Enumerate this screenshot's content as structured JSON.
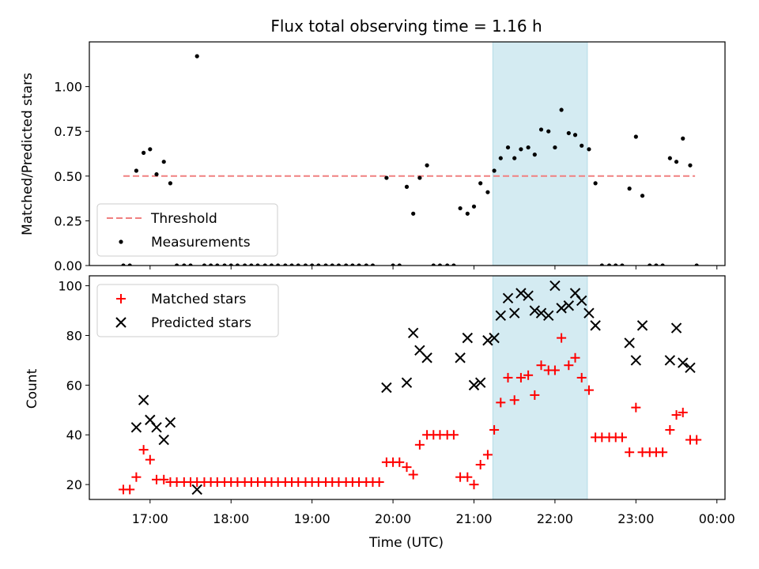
{
  "chart_data": [
    {
      "type": "scatter",
      "title": "Flux total observing time = 1.16 h",
      "ylabel": "Matched/Predicted stars",
      "xlabel": "",
      "xlim": [
        16.25,
        24.1
      ],
      "ylim": [
        0,
        1.25
      ],
      "yticks": [
        0.0,
        0.25,
        0.5,
        0.75,
        1.0
      ],
      "ytick_labels": [
        "0.00",
        "0.25",
        "0.50",
        "0.75",
        "1.00"
      ],
      "shaded_span": [
        21.233,
        22.4
      ],
      "shaded_color": "#d4ebf2",
      "legend_position": "lower-left",
      "threshold": {
        "name": "Threshold",
        "color": "#f08080",
        "x": [
          16.67,
          23.73
        ],
        "y": 0.5
      },
      "measurements": {
        "name": "Measurements",
        "color": "#000000",
        "points": [
          [
            16.67,
            0
          ],
          [
            16.75,
            0
          ],
          [
            16.83,
            0.53
          ],
          [
            16.92,
            0.63
          ],
          [
            17.0,
            0.65
          ],
          [
            17.08,
            0.51
          ],
          [
            17.17,
            0.58
          ],
          [
            17.25,
            0.46
          ],
          [
            17.33,
            0
          ],
          [
            17.42,
            0
          ],
          [
            17.5,
            0
          ],
          [
            17.58,
            1.17
          ],
          [
            17.67,
            0
          ],
          [
            17.75,
            0
          ],
          [
            17.83,
            0
          ],
          [
            17.92,
            0
          ],
          [
            18.0,
            0
          ],
          [
            18.08,
            0
          ],
          [
            18.17,
            0
          ],
          [
            18.25,
            0
          ],
          [
            18.33,
            0
          ],
          [
            18.42,
            0
          ],
          [
            18.5,
            0
          ],
          [
            18.58,
            0
          ],
          [
            18.67,
            0
          ],
          [
            18.75,
            0
          ],
          [
            18.83,
            0
          ],
          [
            18.92,
            0
          ],
          [
            19.0,
            0
          ],
          [
            19.08,
            0
          ],
          [
            19.17,
            0
          ],
          [
            19.25,
            0
          ],
          [
            19.33,
            0
          ],
          [
            19.42,
            0
          ],
          [
            19.5,
            0
          ],
          [
            19.58,
            0
          ],
          [
            19.67,
            0
          ],
          [
            19.75,
            0
          ],
          [
            19.92,
            0.49
          ],
          [
            20.0,
            0
          ],
          [
            20.08,
            0
          ],
          [
            20.17,
            0.44
          ],
          [
            20.25,
            0.29
          ],
          [
            20.33,
            0.49
          ],
          [
            20.42,
            0.56
          ],
          [
            20.5,
            0
          ],
          [
            20.58,
            0
          ],
          [
            20.67,
            0
          ],
          [
            20.75,
            0
          ],
          [
            20.83,
            0.32
          ],
          [
            20.92,
            0.29
          ],
          [
            21.0,
            0.33
          ],
          [
            21.08,
            0.46
          ],
          [
            21.17,
            0.41
          ],
          [
            21.25,
            0.53
          ],
          [
            21.33,
            0.6
          ],
          [
            21.42,
            0.66
          ],
          [
            21.5,
            0.6
          ],
          [
            21.58,
            0.65
          ],
          [
            21.67,
            0.66
          ],
          [
            21.75,
            0.62
          ],
          [
            21.83,
            0.76
          ],
          [
            21.92,
            0.75
          ],
          [
            22.0,
            0.66
          ],
          [
            22.08,
            0.87
          ],
          [
            22.17,
            0.74
          ],
          [
            22.25,
            0.73
          ],
          [
            22.33,
            0.67
          ],
          [
            22.42,
            0.65
          ],
          [
            22.5,
            0.46
          ],
          [
            22.58,
            0
          ],
          [
            22.67,
            0
          ],
          [
            22.75,
            0
          ],
          [
            22.83,
            0
          ],
          [
            22.92,
            0.43
          ],
          [
            23.0,
            0.72
          ],
          [
            23.08,
            0.39
          ],
          [
            23.17,
            0
          ],
          [
            23.25,
            0
          ],
          [
            23.33,
            0
          ],
          [
            23.42,
            0.6
          ],
          [
            23.5,
            0.58
          ],
          [
            23.58,
            0.71
          ],
          [
            23.67,
            0.56
          ],
          [
            23.75,
            0
          ]
        ]
      }
    },
    {
      "type": "scatter",
      "title": "",
      "ylabel": "Count",
      "xlabel": "Time (UTC)",
      "xlim": [
        16.25,
        24.1
      ],
      "ylim": [
        14,
        104
      ],
      "yticks": [
        20,
        40,
        60,
        80,
        100
      ],
      "xticks": [
        17,
        18,
        19,
        20,
        21,
        22,
        23,
        24
      ],
      "xtick_labels": [
        "17:00",
        "18:00",
        "19:00",
        "20:00",
        "21:00",
        "22:00",
        "23:00",
        "00:00"
      ],
      "shaded_span": [
        21.233,
        22.4
      ],
      "shaded_color": "#d4ebf2",
      "legend_position": "upper-left",
      "series": [
        {
          "name": "Matched stars",
          "marker": "plus",
          "color": "#ff0000",
          "points": [
            [
              16.67,
              18
            ],
            [
              16.75,
              18
            ],
            [
              16.83,
              23
            ],
            [
              16.92,
              34
            ],
            [
              17.0,
              30
            ],
            [
              17.08,
              22
            ],
            [
              17.17,
              22
            ],
            [
              17.25,
              21
            ],
            [
              17.33,
              21
            ],
            [
              17.42,
              21
            ],
            [
              17.5,
              21
            ],
            [
              17.58,
              21
            ],
            [
              17.67,
              21
            ],
            [
              17.75,
              21
            ],
            [
              17.83,
              21
            ],
            [
              17.92,
              21
            ],
            [
              18.0,
              21
            ],
            [
              18.08,
              21
            ],
            [
              18.17,
              21
            ],
            [
              18.25,
              21
            ],
            [
              18.33,
              21
            ],
            [
              18.42,
              21
            ],
            [
              18.5,
              21
            ],
            [
              18.58,
              21
            ],
            [
              18.67,
              21
            ],
            [
              18.75,
              21
            ],
            [
              18.83,
              21
            ],
            [
              18.92,
              21
            ],
            [
              19.0,
              21
            ],
            [
              19.08,
              21
            ],
            [
              19.17,
              21
            ],
            [
              19.25,
              21
            ],
            [
              19.33,
              21
            ],
            [
              19.42,
              21
            ],
            [
              19.5,
              21
            ],
            [
              19.58,
              21
            ],
            [
              19.67,
              21
            ],
            [
              19.75,
              21
            ],
            [
              19.83,
              21
            ],
            [
              19.92,
              29
            ],
            [
              20.0,
              29
            ],
            [
              20.08,
              29
            ],
            [
              20.17,
              27
            ],
            [
              20.25,
              24
            ],
            [
              20.33,
              36
            ],
            [
              20.42,
              40
            ],
            [
              20.5,
              40
            ],
            [
              20.58,
              40
            ],
            [
              20.67,
              40
            ],
            [
              20.75,
              40
            ],
            [
              20.83,
              23
            ],
            [
              20.92,
              23
            ],
            [
              21.0,
              20
            ],
            [
              21.08,
              28
            ],
            [
              21.17,
              32
            ],
            [
              21.25,
              42
            ],
            [
              21.33,
              53
            ],
            [
              21.42,
              63
            ],
            [
              21.5,
              54
            ],
            [
              21.58,
              63
            ],
            [
              21.67,
              64
            ],
            [
              21.75,
              56
            ],
            [
              21.83,
              68
            ],
            [
              21.92,
              66
            ],
            [
              22.0,
              66
            ],
            [
              22.08,
              79
            ],
            [
              22.17,
              68
            ],
            [
              22.25,
              71
            ],
            [
              22.33,
              63
            ],
            [
              22.42,
              58
            ],
            [
              22.5,
              39
            ],
            [
              22.58,
              39
            ],
            [
              22.67,
              39
            ],
            [
              22.75,
              39
            ],
            [
              22.83,
              39
            ],
            [
              22.92,
              33
            ],
            [
              23.0,
              51
            ],
            [
              23.08,
              33
            ],
            [
              23.17,
              33
            ],
            [
              23.25,
              33
            ],
            [
              23.33,
              33
            ],
            [
              23.42,
              42
            ],
            [
              23.5,
              48
            ],
            [
              23.58,
              49
            ],
            [
              23.67,
              38
            ],
            [
              23.75,
              38
            ]
          ]
        },
        {
          "name": "Predicted stars",
          "marker": "x",
          "color": "#000000",
          "points": [
            [
              16.83,
              43
            ],
            [
              16.92,
              54
            ],
            [
              17.0,
              46
            ],
            [
              17.08,
              43
            ],
            [
              17.17,
              38
            ],
            [
              17.25,
              45
            ],
            [
              17.58,
              18
            ],
            [
              19.92,
              59
            ],
            [
              20.17,
              61
            ],
            [
              20.25,
              81
            ],
            [
              20.33,
              74
            ],
            [
              20.42,
              71
            ],
            [
              20.83,
              71
            ],
            [
              20.92,
              79
            ],
            [
              21.0,
              60
            ],
            [
              21.08,
              61
            ],
            [
              21.17,
              78
            ],
            [
              21.25,
              79
            ],
            [
              21.33,
              88
            ],
            [
              21.42,
              95
            ],
            [
              21.5,
              89
            ],
            [
              21.58,
              97
            ],
            [
              21.67,
              96
            ],
            [
              21.75,
              90
            ],
            [
              21.83,
              89
            ],
            [
              21.92,
              88
            ],
            [
              22.0,
              100
            ],
            [
              22.08,
              91
            ],
            [
              22.17,
              92
            ],
            [
              22.25,
              97
            ],
            [
              22.33,
              94
            ],
            [
              22.42,
              89
            ],
            [
              22.5,
              84
            ],
            [
              22.92,
              77
            ],
            [
              23.0,
              70
            ],
            [
              23.08,
              84
            ],
            [
              23.42,
              70
            ],
            [
              23.5,
              83
            ],
            [
              23.58,
              69
            ],
            [
              23.67,
              67
            ]
          ]
        }
      ]
    }
  ]
}
